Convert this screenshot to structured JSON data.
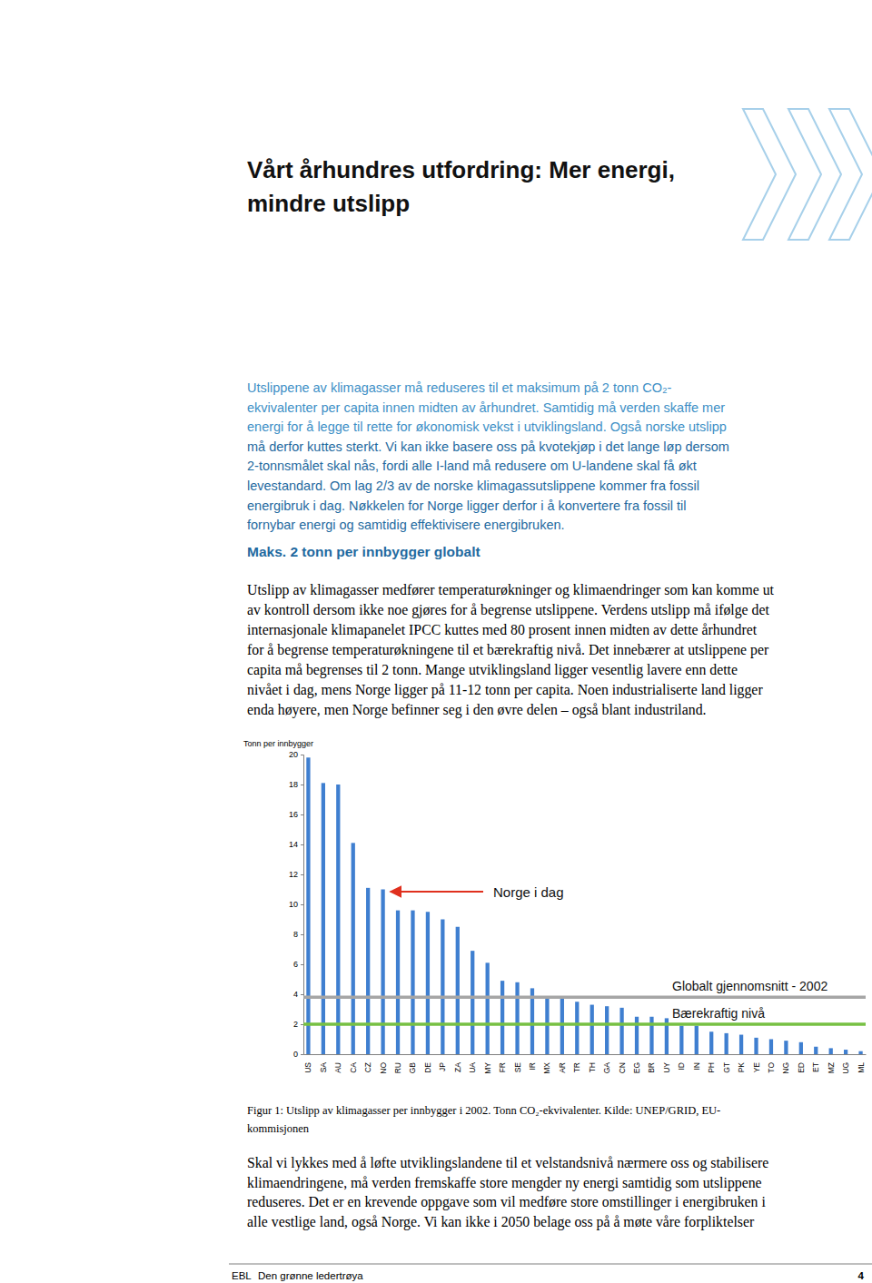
{
  "header": {
    "title_lines": [
      "Vårt århundres utfordring: Mer energi,",
      "mindre utslipp"
    ]
  },
  "intro": {
    "lines": [
      "Utslippene av klimagasser må reduseres til et maksimum på 2 tonn CO₂-",
      "ekvivalenter per capita innen midten av århundret. Samtidig må verden skaffe mer",
      "energi for å legge til rette for økonomisk vekst i utviklingsland. Også norske utslipp",
      "må derfor kuttes sterkt. Vi kan ikke basere oss på kvotekjøp i det lange løp dersom",
      "2-tonnsmålet skal nås, fordi alle I-land må redusere om U-landene skal få økt",
      "levestandard. Om lag 2/3 av de norske klimagassutslippene kommer fra fossil",
      "energibruk i dag. Nøkkelen for Norge ligger derfor i å konvertere fra fossil til",
      "fornybar energi og samtidig effektivisere energibruken."
    ]
  },
  "section": {
    "heading": "Maks. 2 tonn per innbygger globalt",
    "lines": [
      "Utslipp av klimagasser medfører temperaturøkninger og klimaendringer som kan komme ut",
      "av kontroll dersom ikke noe gjøres for å begrense utslippene. Verdens utslipp må ifølge det",
      "internasjonale klimapanelet IPCC kuttes med 80 prosent innen midten av dette århundret",
      "for å begrense temperaturøkningene til et bærekraftig nivå. Det innebærer at utslippene per",
      "capita må begrenses til 2 tonn. Mange utviklingsland ligger vesentlig lavere enn dette",
      "nivået i dag, mens Norge ligger på 11-12 tonn per capita. Noen industrialiserte land ligger",
      "enda høyere, men Norge befinner seg i den øvre delen – også blant industriland."
    ]
  },
  "chart_data": {
    "type": "bar",
    "y_label": "Tonn per innbygger",
    "categories": [
      "US",
      "SA",
      "AU",
      "CA",
      "CZ",
      "NO",
      "RU",
      "GB",
      "DE",
      "JP",
      "ZA",
      "UA",
      "MY",
      "FR",
      "SE",
      "IR",
      "MX",
      "AR",
      "TR",
      "TH",
      "GA",
      "CN",
      "EG",
      "BR",
      "UY",
      "ID",
      "IN",
      "PH",
      "GT",
      "PK",
      "YE",
      "TO",
      "NG",
      "ED",
      "ET",
      "MZ",
      "UG",
      "ML"
    ],
    "values": [
      19.8,
      18.1,
      18.0,
      14.1,
      11.1,
      11.0,
      9.6,
      9.6,
      9.5,
      9.0,
      8.5,
      6.9,
      6.1,
      4.9,
      4.8,
      4.4,
      3.8,
      3.7,
      3.5,
      3.3,
      3.2,
      3.1,
      2.5,
      2.5,
      2.4,
      1.9,
      1.9,
      1.5,
      1.4,
      1.3,
      1.1,
      1.0,
      0.9,
      0.8,
      0.5,
      0.4,
      0.3,
      0.2
    ],
    "color": "#3f7fd0",
    "ylim": [
      0,
      20
    ],
    "yticks": [
      0,
      2,
      4,
      6,
      8,
      10,
      12,
      14,
      16,
      18,
      20
    ],
    "grid": false,
    "reference_lines": [
      {
        "value": 3.8,
        "label": "Globalt gjennomsnitt - 2002",
        "color": "#a6a6a6"
      },
      {
        "value": 2,
        "label": "Bærekraftig nivå",
        "color": "#77c043"
      }
    ],
    "annotations": [
      {
        "text": "Norge i dag",
        "category": "NO",
        "color": "#e0301e"
      }
    ]
  },
  "caption": {
    "lines": [
      "Figur 1: Utslipp av klimagasser per innbygger i 2002. Tonn CO₂-ekvivalenter. Kilde: UNEP/GRID, EU-",
      "kommisjonen"
    ]
  },
  "closing": {
    "lines": [
      "Skal vi lykkes med å løfte utviklingslandene til et velstandsnivå nærmere oss og stabilisere",
      "klimaendringene, må verden fremskaffe store mengder ny energi samtidig som utslippene",
      "reduseres. Det er en krevende oppgave som vil medføre store omstillinger i energibruken i",
      "alle vestlige land, også Norge. Vi kan ikke i 2050 belage oss på å møte våre forpliktelser"
    ]
  },
  "footer": {
    "left": "EBL",
    "title": "Den grønne ledertrøya",
    "page": 4
  }
}
